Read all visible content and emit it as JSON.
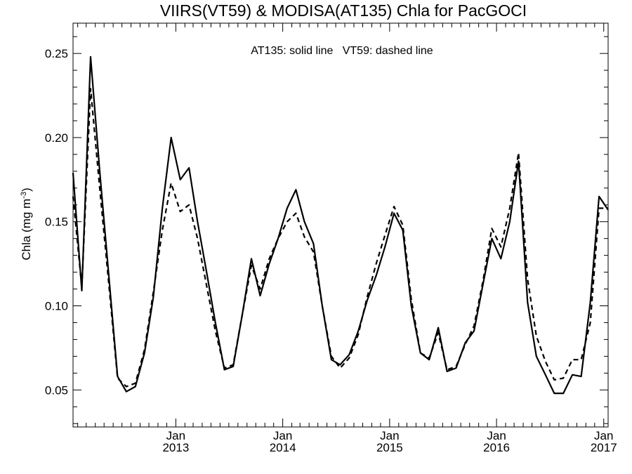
{
  "chart_data": {
    "type": "line",
    "title": "VIIRS(VT59) & MODISA(AT135)  Chla for PacGOCI",
    "annotation": "AT135: solid line   VT59: dashed line",
    "ylabel": "Chla (mg m",
    "ylabel_exponent": "-3",
    "ylabel_close": ")",
    "ylim": [
      0.028,
      0.268
    ],
    "yticks": [
      0.05,
      0.1,
      0.15,
      0.2,
      0.25
    ],
    "ytick_labels": [
      "0.05",
      "0.10",
      "0.15",
      "0.20",
      "0.25"
    ],
    "xlim": [
      "2012-01-16",
      "2017-01-16"
    ],
    "xticks": [
      {
        "date": "2013-01-01",
        "line1": "Jan",
        "line2": "2013"
      },
      {
        "date": "2014-01-01",
        "line1": "Jan",
        "line2": "2014"
      },
      {
        "date": "2015-01-01",
        "line1": "Jan",
        "line2": "2015"
      },
      {
        "date": "2016-01-01",
        "line1": "Jan",
        "line2": "2016"
      },
      {
        "date": "2017-01-01",
        "line1": "Jan",
        "line2": "2017"
      }
    ],
    "series": [
      {
        "name": "AT135",
        "style": "solid",
        "color": "#000000",
        "points": [
          [
            "2012-01-16",
            0.179
          ],
          [
            "2012-02-15",
            0.109
          ],
          [
            "2012-03-16",
            0.248
          ],
          [
            "2012-04-16",
            0.18
          ],
          [
            "2012-05-16",
            0.12
          ],
          [
            "2012-06-16",
            0.058
          ],
          [
            "2012-07-16",
            0.049
          ],
          [
            "2012-08-16",
            0.052
          ],
          [
            "2012-09-16",
            0.072
          ],
          [
            "2012-10-16",
            0.105
          ],
          [
            "2012-11-16",
            0.158
          ],
          [
            "2012-12-16",
            0.2
          ],
          [
            "2013-01-16",
            0.175
          ],
          [
            "2013-02-15",
            0.182
          ],
          [
            "2013-03-16",
            0.15
          ],
          [
            "2013-04-16",
            0.12
          ],
          [
            "2013-05-16",
            0.09
          ],
          [
            "2013-06-16",
            0.062
          ],
          [
            "2013-07-16",
            0.064
          ],
          [
            "2013-08-16",
            0.095
          ],
          [
            "2013-09-16",
            0.128
          ],
          [
            "2013-10-16",
            0.106
          ],
          [
            "2013-11-16",
            0.125
          ],
          [
            "2013-12-16",
            0.14
          ],
          [
            "2014-01-16",
            0.158
          ],
          [
            "2014-02-15",
            0.169
          ],
          [
            "2014-03-16",
            0.15
          ],
          [
            "2014-04-16",
            0.137
          ],
          [
            "2014-05-16",
            0.1
          ],
          [
            "2014-06-16",
            0.068
          ],
          [
            "2014-07-16",
            0.065
          ],
          [
            "2014-08-16",
            0.071
          ],
          [
            "2014-09-16",
            0.085
          ],
          [
            "2014-10-16",
            0.103
          ],
          [
            "2014-11-16",
            0.118
          ],
          [
            "2014-12-16",
            0.135
          ],
          [
            "2015-01-16",
            0.155
          ],
          [
            "2015-02-15",
            0.145
          ],
          [
            "2015-03-16",
            0.1
          ],
          [
            "2015-04-16",
            0.072
          ],
          [
            "2015-05-16",
            0.068
          ],
          [
            "2015-06-16",
            0.087
          ],
          [
            "2015-07-16",
            0.061
          ],
          [
            "2015-08-16",
            0.063
          ],
          [
            "2015-09-16",
            0.078
          ],
          [
            "2015-10-16",
            0.085
          ],
          [
            "2015-11-16",
            0.113
          ],
          [
            "2015-12-16",
            0.14
          ],
          [
            "2016-01-16",
            0.128
          ],
          [
            "2016-02-15",
            0.15
          ],
          [
            "2016-03-16",
            0.186
          ],
          [
            "2016-04-16",
            0.102
          ],
          [
            "2016-05-16",
            0.07
          ],
          [
            "2016-06-16",
            0.059
          ],
          [
            "2016-07-16",
            0.048
          ],
          [
            "2016-08-16",
            0.048
          ],
          [
            "2016-09-16",
            0.059
          ],
          [
            "2016-10-16",
            0.058
          ],
          [
            "2016-11-16",
            0.102
          ],
          [
            "2016-12-16",
            0.165
          ],
          [
            "2017-01-16",
            0.157
          ]
        ]
      },
      {
        "name": "VT59",
        "style": "dashed",
        "color": "#000000",
        "points": [
          [
            "2012-01-16",
            0.165
          ],
          [
            "2012-02-15",
            0.111
          ],
          [
            "2012-03-16",
            0.229
          ],
          [
            "2012-04-16",
            0.17
          ],
          [
            "2012-05-16",
            0.115
          ],
          [
            "2012-06-16",
            0.057
          ],
          [
            "2012-07-16",
            0.052
          ],
          [
            "2012-08-16",
            0.054
          ],
          [
            "2012-09-16",
            0.074
          ],
          [
            "2012-10-16",
            0.108
          ],
          [
            "2012-11-16",
            0.145
          ],
          [
            "2012-12-16",
            0.173
          ],
          [
            "2013-01-16",
            0.156
          ],
          [
            "2013-02-15",
            0.16
          ],
          [
            "2013-03-16",
            0.14
          ],
          [
            "2013-04-16",
            0.112
          ],
          [
            "2013-05-16",
            0.085
          ],
          [
            "2013-06-16",
            0.063
          ],
          [
            "2013-07-16",
            0.065
          ],
          [
            "2013-08-16",
            0.095
          ],
          [
            "2013-09-16",
            0.124
          ],
          [
            "2013-10-16",
            0.11
          ],
          [
            "2013-11-16",
            0.128
          ],
          [
            "2013-12-16",
            0.14
          ],
          [
            "2014-01-16",
            0.15
          ],
          [
            "2014-02-15",
            0.155
          ],
          [
            "2014-03-16",
            0.141
          ],
          [
            "2014-04-16",
            0.132
          ],
          [
            "2014-05-16",
            0.1
          ],
          [
            "2014-06-16",
            0.07
          ],
          [
            "2014-07-16",
            0.063
          ],
          [
            "2014-08-16",
            0.069
          ],
          [
            "2014-09-16",
            0.083
          ],
          [
            "2014-10-16",
            0.105
          ],
          [
            "2014-11-16",
            0.125
          ],
          [
            "2014-12-16",
            0.142
          ],
          [
            "2015-01-16",
            0.159
          ],
          [
            "2015-02-15",
            0.148
          ],
          [
            "2015-03-16",
            0.104
          ],
          [
            "2015-04-16",
            0.072
          ],
          [
            "2015-05-16",
            0.069
          ],
          [
            "2015-06-16",
            0.084
          ],
          [
            "2015-07-16",
            0.062
          ],
          [
            "2015-08-16",
            0.064
          ],
          [
            "2015-09-16",
            0.077
          ],
          [
            "2015-10-16",
            0.088
          ],
          [
            "2015-11-16",
            0.115
          ],
          [
            "2015-12-16",
            0.146
          ],
          [
            "2016-01-16",
            0.135
          ],
          [
            "2016-02-15",
            0.158
          ],
          [
            "2016-03-16",
            0.191
          ],
          [
            "2016-04-16",
            0.116
          ],
          [
            "2016-05-16",
            0.082
          ],
          [
            "2016-06-16",
            0.067
          ],
          [
            "2016-07-16",
            0.056
          ],
          [
            "2016-08-16",
            0.057
          ],
          [
            "2016-09-16",
            0.068
          ],
          [
            "2016-10-16",
            0.068
          ],
          [
            "2016-11-16",
            0.09
          ],
          [
            "2016-12-16",
            0.158
          ],
          [
            "2017-01-16",
            0.158
          ]
        ]
      }
    ],
    "grid": false,
    "legend": "none"
  }
}
